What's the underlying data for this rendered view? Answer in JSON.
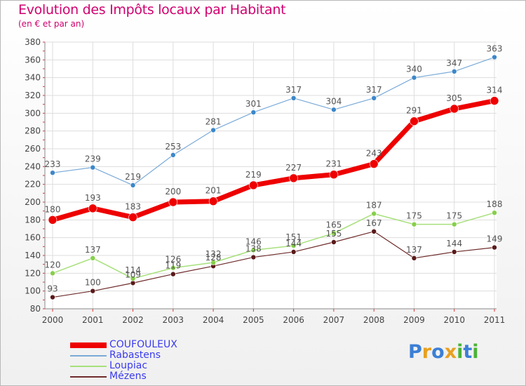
{
  "title": "Evolution des Impôts locaux par Habitant",
  "subtitle": "(en € et par an)",
  "logo": {
    "text": "Proxiti",
    "letters": [
      {
        "ch": "P",
        "color": "#3b7fd6"
      },
      {
        "ch": "r",
        "color": "#e8a020"
      },
      {
        "ch": "o",
        "color": "#3b7fd6"
      },
      {
        "ch": "x",
        "color": "#e8a020"
      },
      {
        "ch": "i",
        "color": "#49b336"
      },
      {
        "ch": "t",
        "color": "#3b7fd6"
      },
      {
        "ch": "i",
        "color": "#49b336"
      }
    ]
  },
  "chart_data": {
    "type": "line",
    "title": "Evolution des Impôts locaux par Habitant",
    "subtitle": "(en € et par an)",
    "x": [
      "2000",
      "2001",
      "2002",
      "2003",
      "2004",
      "2005",
      "2006",
      "2007",
      "2008",
      "2009",
      "2010",
      "2011"
    ],
    "ylim": [
      80,
      380
    ],
    "yticks": [
      80,
      100,
      120,
      140,
      160,
      180,
      200,
      220,
      240,
      260,
      280,
      300,
      320,
      340,
      360,
      380
    ],
    "grid": true,
    "legend_position": "bottom-left",
    "series": [
      {
        "name": "COUFOULEUX",
        "color": "#ee0000",
        "values": [
          180,
          193,
          183,
          200,
          201,
          219,
          227,
          231,
          243,
          291,
          305,
          314
        ]
      },
      {
        "name": "Rabastens",
        "color": "#7aaad8",
        "values": [
          233,
          239,
          219,
          253,
          281,
          301,
          317,
          304,
          317,
          340,
          347,
          363
        ]
      },
      {
        "name": "Loupiac",
        "color": "#a6e07a",
        "values": [
          120,
          137,
          114,
          126,
          132,
          146,
          151,
          165,
          187,
          175,
          175,
          188
        ]
      },
      {
        "name": "Mézens",
        "color": "#6e2a2a",
        "values": [
          93,
          100,
          109,
          119,
          128,
          138,
          144,
          155,
          167,
          137,
          144,
          149
        ]
      }
    ]
  }
}
